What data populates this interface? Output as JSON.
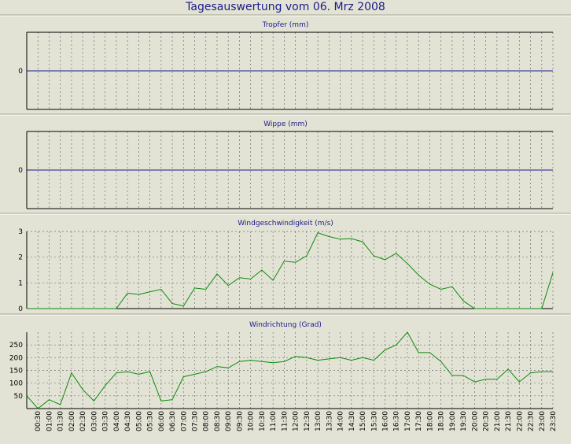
{
  "title": "Tagesauswertung vom 06. Mrz 2008",
  "x_labels": [
    "00:30",
    "01:00",
    "01:30",
    "02:00",
    "02:30",
    "03:00",
    "03:30",
    "04:00",
    "04:30",
    "05:00",
    "05:30",
    "06:00",
    "06:30",
    "07:00",
    "07:30",
    "08:00",
    "08:30",
    "09:00",
    "09:30",
    "10:00",
    "10:30",
    "11:00",
    "11:30",
    "12:00",
    "12:30",
    "13:00",
    "13:30",
    "14:00",
    "14:30",
    "15:00",
    "15:30",
    "16:00",
    "16:30",
    "17:00",
    "17:30",
    "18:00",
    "18:30",
    "19:00",
    "19:30",
    "20:00",
    "20:30",
    "21:00",
    "21:30",
    "22:00",
    "22:30",
    "23:00",
    "23:30"
  ],
  "colors": {
    "panel_bg": "#e3e3d5",
    "axis": "#000000",
    "zero_line": "#1a1a8c",
    "series": "#0a8a0a",
    "grid": "#707070",
    "title": "#1a1a8c"
  },
  "chart_data": [
    {
      "type": "line",
      "title": "Tropfer (mm)",
      "ylim": [
        -1,
        1
      ],
      "yticks": [
        0
      ],
      "series": [
        {
          "values": [
            0,
            0,
            0,
            0,
            0,
            0,
            0,
            0,
            0,
            0,
            0,
            0,
            0,
            0,
            0,
            0,
            0,
            0,
            0,
            0,
            0,
            0,
            0,
            0,
            0,
            0,
            0,
            0,
            0,
            0,
            0,
            0,
            0,
            0,
            0,
            0,
            0,
            0,
            0,
            0,
            0,
            0,
            0,
            0,
            0,
            0,
            0,
            0
          ]
        }
      ]
    },
    {
      "type": "line",
      "title": "Wippe (mm)",
      "ylim": [
        -1,
        1
      ],
      "yticks": [
        0
      ],
      "series": [
        {
          "values": [
            0,
            0,
            0,
            0,
            0,
            0,
            0,
            0,
            0,
            0,
            0,
            0,
            0,
            0,
            0,
            0,
            0,
            0,
            0,
            0,
            0,
            0,
            0,
            0,
            0,
            0,
            0,
            0,
            0,
            0,
            0,
            0,
            0,
            0,
            0,
            0,
            0,
            0,
            0,
            0,
            0,
            0,
            0,
            0,
            0,
            0,
            0,
            0
          ]
        }
      ]
    },
    {
      "type": "line",
      "title": "Windgeschwindigkeit (m/s)",
      "ylim": [
        0,
        3
      ],
      "yticks": [
        0,
        1,
        2,
        3
      ],
      "series": [
        {
          "values": [
            0,
            0,
            0,
            0,
            0,
            0,
            0,
            0,
            0,
            0.6,
            0.55,
            0.65,
            0.75,
            0.2,
            0.1,
            0.8,
            0.75,
            1.35,
            0.9,
            1.2,
            1.15,
            1.5,
            1.1,
            1.85,
            1.8,
            2.05,
            2.95,
            2.8,
            2.7,
            2.72,
            2.6,
            2.05,
            1.9,
            2.15,
            1.75,
            1.3,
            0.95,
            0.75,
            0.85,
            0.3,
            0,
            0,
            0,
            0,
            0,
            0,
            0,
            1.4
          ]
        }
      ]
    },
    {
      "type": "line",
      "title": "Windrichtung (Grad)",
      "ylim": [
        0,
        300
      ],
      "yticks": [
        50,
        100,
        150,
        200,
        250
      ],
      "series": [
        {
          "values": [
            50,
            0,
            35,
            15,
            140,
            75,
            30,
            90,
            140,
            145,
            135,
            145,
            30,
            35,
            125,
            135,
            145,
            165,
            160,
            185,
            190,
            185,
            180,
            185,
            205,
            200,
            190,
            195,
            200,
            190,
            200,
            190,
            230,
            250,
            300,
            220,
            220,
            185,
            130,
            130,
            105,
            115,
            115,
            155,
            105,
            140,
            145,
            145
          ]
        }
      ]
    }
  ]
}
